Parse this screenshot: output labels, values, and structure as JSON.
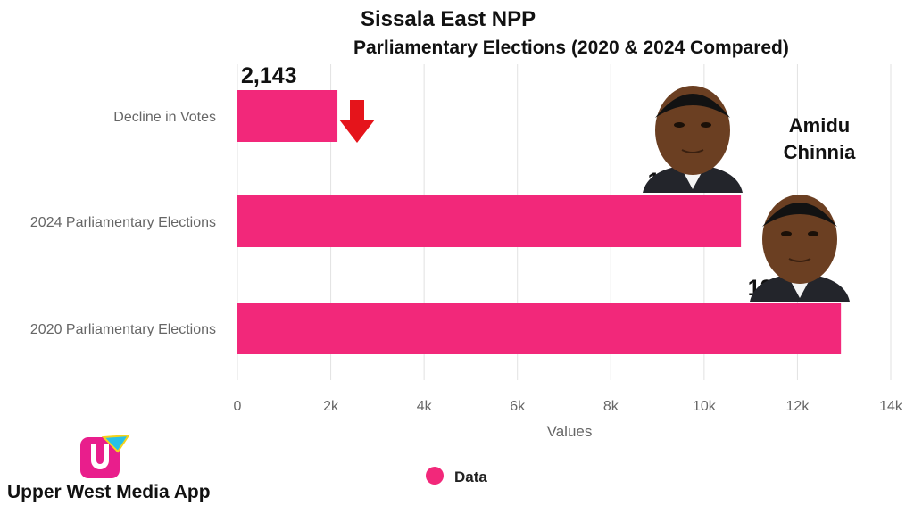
{
  "chart_data": {
    "type": "bar",
    "orientation": "horizontal",
    "title": "Sissala East NPP",
    "subtitle": "Parliamentary Elections (2020 & 2024 Compared)",
    "categories": [
      "Decline in Votes",
      "2024 Parliamentary Elections",
      "2020 Parliamentary Elections"
    ],
    "values": [
      2143,
      10789,
      12932
    ],
    "value_labels": [
      "2,143",
      "10,789",
      "12,932"
    ],
    "xlabel": "Values",
    "ylabel": "",
    "xlim": [
      0,
      14000
    ],
    "xticks": [
      0,
      2000,
      4000,
      6000,
      8000,
      10000,
      12000,
      14000
    ],
    "xtick_labels": [
      "0",
      "2k",
      "4k",
      "6k",
      "8k",
      "10k",
      "12k",
      "14k"
    ],
    "series": [
      {
        "name": "Data",
        "values": [
          2143,
          10789,
          12932
        ]
      }
    ],
    "legend_position": "bottom",
    "grid": true,
    "bar_color": "#F2287A",
    "annotation": "red down arrow next to Decline in Votes bar"
  },
  "person_name_line1": "Amidu",
  "person_name_line2": "Chinnia",
  "brand": "Upper West Media App",
  "colors": {
    "bar": "#F2287A",
    "arrow": "#E5141B",
    "grid": "#E2E2E2",
    "axis_text": "#666666",
    "logo_pink": "#E91E8C",
    "logo_cyan": "#27C1E8",
    "logo_yellow": "#F5D31B"
  }
}
